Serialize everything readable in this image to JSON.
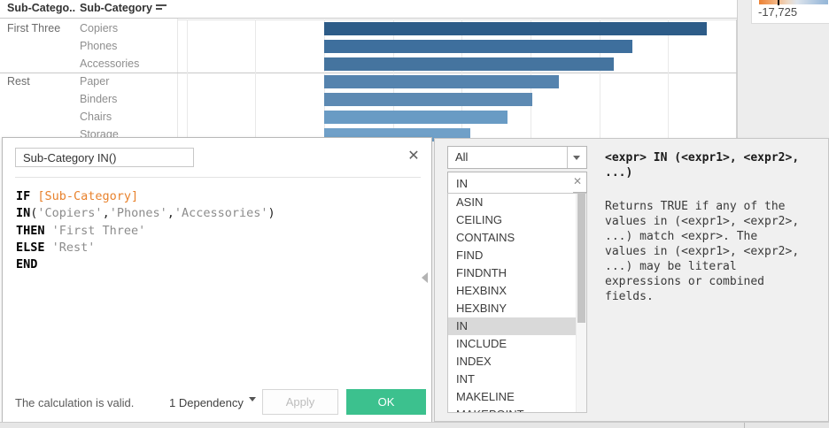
{
  "chart": {
    "column_headers": [
      "Sub-Catego..",
      "Sub-Category"
    ],
    "groups": [
      {
        "label": "First Three",
        "members": [
          "Copiers",
          "Phones",
          "Accessories"
        ]
      },
      {
        "label": "Rest",
        "members": [
          "Paper",
          "Binders",
          "Chairs",
          "Storage"
        ]
      }
    ],
    "legend": {
      "min_label": "-17,725"
    }
  },
  "chart_data": {
    "type": "bar",
    "orientation": "horizontal",
    "title": "",
    "xlabel": "",
    "ylabel": "Sub-Category",
    "categories": [
      "Copiers",
      "Phones",
      "Accessories",
      "Paper",
      "Binders",
      "Chairs",
      "Storage"
    ],
    "values": [
      55600,
      44800,
      42100,
      34100,
      30300,
      26700,
      21300
    ],
    "row_groups": [
      "First Three",
      "First Three",
      "First Three",
      "Rest",
      "Rest",
      "Rest",
      "Rest"
    ],
    "sorted": "descending",
    "xlim": [
      -20000,
      60000
    ],
    "gridline_step": 10000,
    "grid": true,
    "bar_colors": [
      "#2d5c88",
      "#3e6f9d",
      "#45749f",
      "#5583ae",
      "#5d8ab3",
      "#699bc4",
      "#70a0c8"
    ],
    "color_legend": {
      "min_label": "-17,725",
      "gradient": [
        "#ec8133",
        "#dde4ec",
        "#94b6d7"
      ]
    }
  },
  "dialog": {
    "title_value": "Sub-Category IN()",
    "close_label": "✕",
    "formula_lines": [
      [
        {
          "text": "IF ",
          "cls": "kw"
        },
        {
          "text": "[Sub-Category]",
          "cls": "field"
        }
      ],
      [
        {
          "text": "IN",
          "cls": "kw"
        },
        {
          "text": "(",
          "cls": "pl"
        },
        {
          "text": "'Copiers'",
          "cls": "str"
        },
        {
          "text": ",",
          "cls": "pl"
        },
        {
          "text": "'Phones'",
          "cls": "str"
        },
        {
          "text": ",",
          "cls": "pl"
        },
        {
          "text": "'Accessories'",
          "cls": "str"
        },
        {
          "text": ")",
          "cls": "pl"
        }
      ],
      [
        {
          "text": "THEN ",
          "cls": "kw"
        },
        {
          "text": "'First Three'",
          "cls": "str"
        }
      ],
      [
        {
          "text": "ELSE ",
          "cls": "kw"
        },
        {
          "text": "'Rest'",
          "cls": "str"
        }
      ],
      [
        {
          "text": "END",
          "cls": "kw"
        }
      ]
    ],
    "status": "The calculation is valid.",
    "dependency_label": "1 Dependency",
    "apply_label": "Apply",
    "ok_label": "OK"
  },
  "helper": {
    "category_dropdown_value": "All",
    "search_value": "IN",
    "clear_label": "✕",
    "functions": [
      "ASIN",
      "CEILING",
      "CONTAINS",
      "FIND",
      "FINDNTH",
      "HEXBINX",
      "HEXBINY",
      "IN",
      "INCLUDE",
      "INDEX",
      "INT",
      "MAKELINE",
      "MAKEPOINT"
    ],
    "selected_function": "IN",
    "signature_lines": [
      "<expr> IN (<expr1>, <expr2>,",
      "...)"
    ],
    "description_lines": [
      "Returns TRUE if any of the",
      "values in (<expr1>, <expr2>,",
      "...) match <expr>. The",
      "values in (<expr1>, <expr2>,",
      "...) may be literal",
      "expressions or combined",
      "fields."
    ]
  },
  "colors": {
    "accent_orange": "#e8822d",
    "string_gray": "#8c8c8c",
    "ok_green": "#3cc18e",
    "selected_row": "#d9d9d9"
  }
}
